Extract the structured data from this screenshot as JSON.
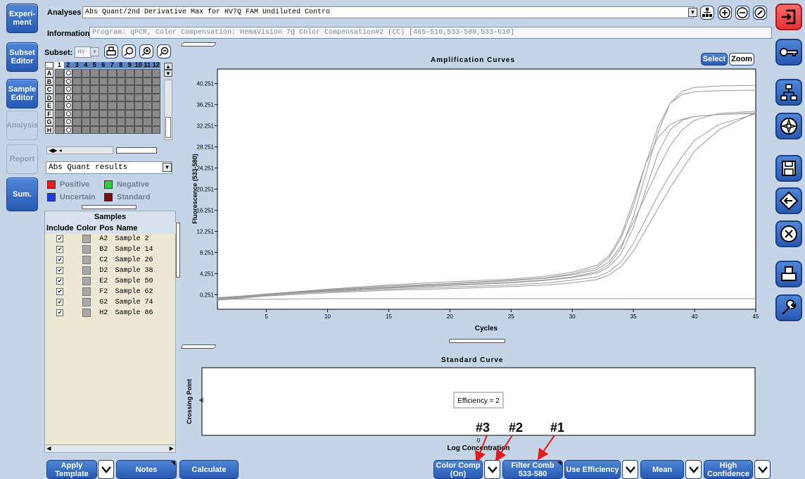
{
  "nav": {
    "experiment": "Experi-\nment",
    "subset_editor": "Subset\nEditor",
    "sample_editor": "Sample\nEditor",
    "analysis": "Analysis",
    "report": "Report",
    "sum": "Sum."
  },
  "header": {
    "analyses_label": "Analyses",
    "analyses_value": "Abs Quant/2nd Derivative Max for HV7Q FAM Undiluted Contro",
    "information_label": "Information",
    "information_value": "Program: qPCR, Color Compensation: HemaVision 7Q Color Compensation#2 (CC) [465-510,533-580,533-610]"
  },
  "subset": {
    "label": "Subset:",
    "value": "HV",
    "plate_columns": [
      "1",
      "2",
      "3",
      "4",
      "5",
      "6",
      "7",
      "8",
      "9",
      "10",
      "11",
      "12"
    ],
    "plate_rows": [
      "A",
      "B",
      "C",
      "D",
      "E",
      "F",
      "G",
      "H"
    ]
  },
  "results_select": {
    "value": "Abs Quant results"
  },
  "legend": {
    "positive": "Positive",
    "negative": "Negative",
    "uncertain": "Uncertain",
    "standard": "Standard",
    "colors": {
      "positive": "#e81c1c",
      "negative": "#2ecc40",
      "uncertain": "#1c3ce8",
      "standard": "#7a1010"
    }
  },
  "samples": {
    "title": "Samples",
    "headers": [
      "Include",
      "Color",
      "Pos",
      "Name"
    ],
    "rows": [
      {
        "pos": "A2",
        "name": "Sample 2"
      },
      {
        "pos": "B2",
        "name": "Sample 14"
      },
      {
        "pos": "C2",
        "name": "Sample 26"
      },
      {
        "pos": "D2",
        "name": "Sample 38"
      },
      {
        "pos": "E2",
        "name": "Sample 50"
      },
      {
        "pos": "F2",
        "name": "Sample 62"
      },
      {
        "pos": "G2",
        "name": "Sample 74"
      },
      {
        "pos": "H2",
        "name": "Sample 86"
      }
    ]
  },
  "chart_buttons": {
    "select": "Select",
    "zoom": "Zoom"
  },
  "chart_data": [
    {
      "type": "line",
      "title": "Amplification Curves",
      "xlabel": "Cycles",
      "ylabel": "Fluorescence (533-580)",
      "xlim": [
        1,
        45
      ],
      "ylim": [
        -2.5,
        43
      ],
      "x_ticks": [
        5,
        10,
        15,
        20,
        25,
        30,
        35,
        40,
        45
      ],
      "y_ticks": [
        0.251,
        4.251,
        8.251,
        12.251,
        16.251,
        20.251,
        24.251,
        28.251,
        32.251,
        36.251,
        40.251
      ],
      "y_tick_labels": [
        "0.251",
        "4.251",
        "8.251",
        "12.251",
        "16.251",
        "20.251",
        "24.251",
        "28.251",
        "32.251",
        "36.251",
        "40.251"
      ],
      "line_color": "#9a9a9a",
      "series": [
        {
          "values": [
            [
              1,
              -0.6
            ],
            [
              5,
              0.2
            ],
            [
              10,
              1.0
            ],
            [
              15,
              1.6
            ],
            [
              20,
              2.1
            ],
            [
              25,
              2.6
            ],
            [
              28,
              3.1
            ],
            [
              30,
              3.6
            ],
            [
              32,
              4.6
            ],
            [
              33,
              6.0
            ],
            [
              34,
              9.0
            ],
            [
              35,
              15.0
            ],
            [
              36,
              23.0
            ],
            [
              37,
              31.0
            ],
            [
              38,
              36.5
            ],
            [
              39,
              38.8
            ],
            [
              40,
              39.5
            ],
            [
              42,
              39.8
            ],
            [
              45,
              39.9
            ]
          ]
        },
        {
          "values": [
            [
              1,
              -0.5
            ],
            [
              5,
              0.3
            ],
            [
              10,
              1.2
            ],
            [
              15,
              1.9
            ],
            [
              20,
              2.4
            ],
            [
              25,
              3.0
            ],
            [
              28,
              3.5
            ],
            [
              30,
              4.2
            ],
            [
              32,
              5.4
            ],
            [
              33,
              7.2
            ],
            [
              34,
              11.0
            ],
            [
              35,
              17.0
            ],
            [
              36,
              25.0
            ],
            [
              37,
              32.0
            ],
            [
              38,
              36.5
            ],
            [
              39,
              38.2
            ],
            [
              40,
              38.7
            ],
            [
              42,
              38.9
            ],
            [
              45,
              39.0
            ]
          ]
        },
        {
          "values": [
            [
              1,
              -0.4
            ],
            [
              5,
              0.4
            ],
            [
              10,
              1.3
            ],
            [
              15,
              2.1
            ],
            [
              20,
              2.7
            ],
            [
              25,
              3.2
            ],
            [
              28,
              3.8
            ],
            [
              30,
              4.5
            ],
            [
              32,
              5.8
            ],
            [
              33,
              7.6
            ],
            [
              34,
              11.5
            ],
            [
              35,
              18.0
            ],
            [
              36,
              25.0
            ],
            [
              37,
              30.0
            ],
            [
              38,
              32.5
            ],
            [
              39,
              33.5
            ],
            [
              40,
              34.0
            ],
            [
              42,
              34.4
            ],
            [
              45,
              34.6
            ]
          ]
        },
        {
          "values": [
            [
              1,
              -0.7
            ],
            [
              5,
              0.1
            ],
            [
              10,
              0.9
            ],
            [
              15,
              1.5
            ],
            [
              20,
              2.0
            ],
            [
              25,
              2.5
            ],
            [
              28,
              3.0
            ],
            [
              30,
              3.5
            ],
            [
              32,
              4.3
            ],
            [
              33,
              5.5
            ],
            [
              34,
              8.0
            ],
            [
              35,
              13.0
            ],
            [
              36,
              20.0
            ],
            [
              37,
              27.0
            ],
            [
              38,
              31.5
            ],
            [
              39,
              33.3
            ],
            [
              40,
              34.0
            ],
            [
              42,
              34.4
            ],
            [
              45,
              34.7
            ]
          ]
        },
        {
          "values": [
            [
              1,
              -0.3
            ],
            [
              5,
              0.3
            ],
            [
              10,
              1.1
            ],
            [
              15,
              1.7
            ],
            [
              20,
              2.3
            ],
            [
              25,
              2.9
            ],
            [
              28,
              3.4
            ],
            [
              30,
              4.0
            ],
            [
              32,
              5.0
            ],
            [
              33,
              6.5
            ],
            [
              34,
              9.5
            ],
            [
              35,
              14.0
            ],
            [
              36,
              19.0
            ],
            [
              37,
              24.0
            ],
            [
              38,
              28.5
            ],
            [
              39,
              31.5
            ],
            [
              40,
              33.3
            ],
            [
              42,
              34.6
            ],
            [
              45,
              35.0
            ]
          ]
        },
        {
          "values": [
            [
              1,
              -0.5
            ],
            [
              5,
              0.2
            ],
            [
              10,
              0.8
            ],
            [
              15,
              1.3
            ],
            [
              20,
              1.7
            ],
            [
              25,
              2.1
            ],
            [
              28,
              2.5
            ],
            [
              30,
              3.0
            ],
            [
              32,
              3.6
            ],
            [
              33,
              4.6
            ],
            [
              34,
              6.5
            ],
            [
              35,
              10.0
            ],
            [
              36,
              14.5
            ],
            [
              37,
              19.0
            ],
            [
              38,
              23.0
            ],
            [
              39,
              26.5
            ],
            [
              40,
              29.5
            ],
            [
              42,
              32.5
            ],
            [
              45,
              34.5
            ]
          ]
        },
        {
          "values": [
            [
              1,
              -0.8
            ],
            [
              5,
              0.0
            ],
            [
              10,
              0.6
            ],
            [
              15,
              1.1
            ],
            [
              20,
              1.4
            ],
            [
              25,
              1.8
            ],
            [
              28,
              2.1
            ],
            [
              30,
              2.5
            ],
            [
              32,
              3.1
            ],
            [
              33,
              4.0
            ],
            [
              34,
              5.6
            ],
            [
              35,
              8.5
            ],
            [
              36,
              12.5
            ],
            [
              37,
              16.5
            ],
            [
              38,
              20.5
            ],
            [
              39,
              24.0
            ],
            [
              40,
              27.5
            ],
            [
              42,
              31.5
            ],
            [
              45,
              34.8
            ]
          ]
        },
        {
          "values": [
            [
              1,
              -0.6
            ],
            [
              5,
              -0.6
            ],
            [
              10,
              -0.5
            ],
            [
              15,
              -0.5
            ],
            [
              20,
              -0.5
            ],
            [
              25,
              -0.5
            ],
            [
              30,
              -0.5
            ],
            [
              35,
              -0.5
            ],
            [
              40,
              -0.5
            ],
            [
              45,
              -0.5
            ]
          ]
        }
      ]
    },
    {
      "type": "scatter",
      "title": "Standard Curve",
      "xlabel": "Log Concentration",
      "ylabel": "Crossing Point",
      "x_ticks": [
        0
      ],
      "y_ticks": [
        0
      ],
      "annotation": "Efficiency = 2"
    }
  ],
  "bottom": {
    "apply_template": "Apply\nTemplate",
    "notes": "Notes",
    "calculate": "Calculate",
    "color_comp": "Color Comp\n(On)",
    "filter_comb": "Filter Comb\n533-580",
    "use_efficiency": "Use Efficiency",
    "mean": "Mean",
    "high_confidence": "High\nConfidence"
  },
  "annotations": {
    "a1": "#1",
    "a2": "#2",
    "a3": "#3"
  }
}
